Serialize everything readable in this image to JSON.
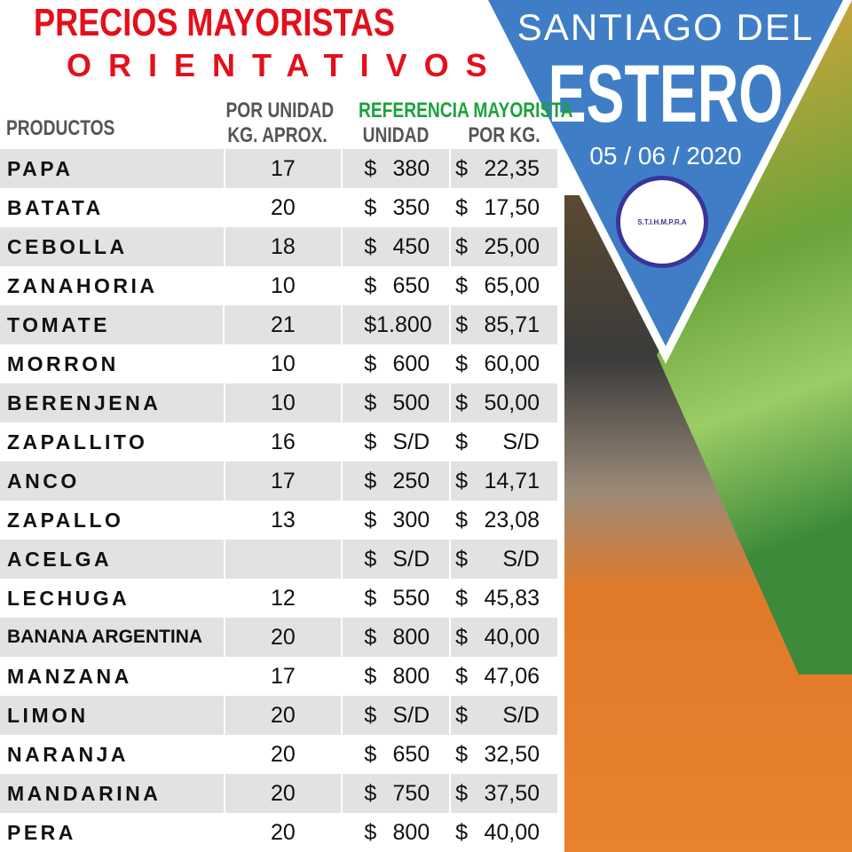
{
  "title": {
    "line1": "PRECIOS MAYORISTAS",
    "line2": "ORIENTATIVOS"
  },
  "banner": {
    "city_line1": "SANTIAGO DEL",
    "city_line2": "ESTERO",
    "date": "05 / 06 / 2020",
    "logo_text": "S.T.I.H.M.P.R.A"
  },
  "headers": {
    "products": "PRODUCTOS",
    "per_unit_line1": "POR UNIDAD",
    "per_unit_line2": "KG. APROX.",
    "reference": "REFERENCIA MAYORISTA",
    "unit": "UNIDAD",
    "per_kg": "POR KG."
  },
  "currency": "$",
  "colors": {
    "title": "#e3101b",
    "reference": "#1aa33a",
    "banner": "#3f7ec7"
  },
  "rows": [
    {
      "product": "PAPA",
      "kg": "17",
      "unit": "380",
      "per_kg": "22,35"
    },
    {
      "product": "BATATA",
      "kg": "20",
      "unit": "350",
      "per_kg": "17,50"
    },
    {
      "product": "CEBOLLA",
      "kg": "18",
      "unit": "450",
      "per_kg": "25,00"
    },
    {
      "product": "ZANAHORIA",
      "kg": "10",
      "unit": "650",
      "per_kg": "65,00"
    },
    {
      "product": "TOMATE",
      "kg": "21",
      "unit": "1.800",
      "per_kg": "85,71"
    },
    {
      "product": "MORRON",
      "kg": "10",
      "unit": "600",
      "per_kg": "60,00"
    },
    {
      "product": "BERENJENA",
      "kg": "10",
      "unit": "500",
      "per_kg": "50,00"
    },
    {
      "product": "ZAPALLITO",
      "kg": "16",
      "unit": "S/D",
      "per_kg": "S/D"
    },
    {
      "product": "ANCO",
      "kg": "17",
      "unit": "250",
      "per_kg": "14,71"
    },
    {
      "product": "ZAPALLO",
      "kg": "13",
      "unit": "300",
      "per_kg": "23,08"
    },
    {
      "product": "ACELGA",
      "kg": "",
      "unit": "S/D",
      "per_kg": "S/D"
    },
    {
      "product": "LECHUGA",
      "kg": "12",
      "unit": "550",
      "per_kg": "45,83"
    },
    {
      "product": "BANANA ARGENTINA",
      "kg": "20",
      "unit": "800",
      "per_kg": "40,00"
    },
    {
      "product": "MANZANA",
      "kg": "17",
      "unit": "800",
      "per_kg": "47,06"
    },
    {
      "product": "LIMON",
      "kg": "20",
      "unit": "S/D",
      "per_kg": "S/D"
    },
    {
      "product": "NARANJA",
      "kg": "20",
      "unit": "650",
      "per_kg": "32,50"
    },
    {
      "product": "MANDARINA",
      "kg": "20",
      "unit": "750",
      "per_kg": "37,50"
    },
    {
      "product": "PERA",
      "kg": "20",
      "unit": "800",
      "per_kg": "40,00"
    }
  ]
}
